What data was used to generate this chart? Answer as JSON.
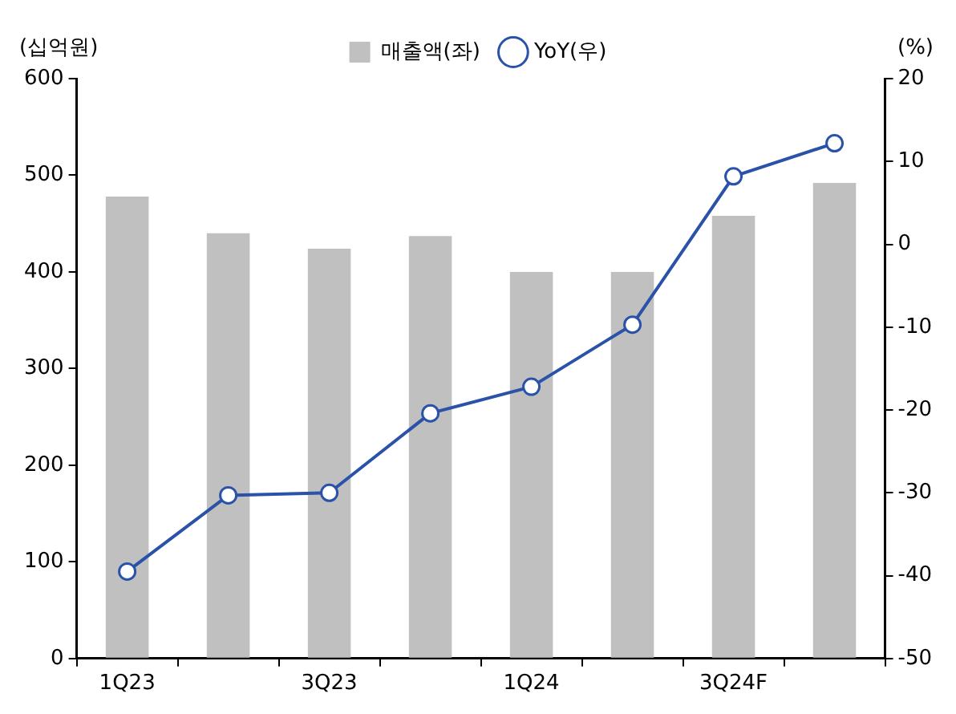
{
  "chart_data": {
    "type": "bar",
    "categories": [
      "1Q23",
      null,
      "3Q23",
      null,
      "1Q24",
      null,
      "3Q24F",
      null
    ],
    "series": [
      {
        "name": "매출액(좌)",
        "color": "#c0c0c0",
        "values": [
          478,
          440,
          424,
          437,
          400,
          400,
          458,
          492
        ]
      },
      {
        "name": "YoY(우)",
        "type": "line",
        "axis": "y2",
        "color": "#2a52a8",
        "marker": "circle",
        "values": [
          -39.5,
          -30.3,
          -30.0,
          -20.4,
          -17.2,
          -9.7,
          8.2,
          12.2
        ]
      }
    ],
    "ylabel": "(십억원)",
    "y2label": "(%)",
    "ylim": [
      0,
      600
    ],
    "yticks": [
      0,
      100,
      200,
      300,
      400,
      500,
      600
    ],
    "y2lim": [
      -50,
      20
    ],
    "y2ticks": [
      -50,
      -40,
      -30,
      -20,
      -10,
      0,
      10,
      20
    ],
    "legend": "top",
    "grid": false
  }
}
